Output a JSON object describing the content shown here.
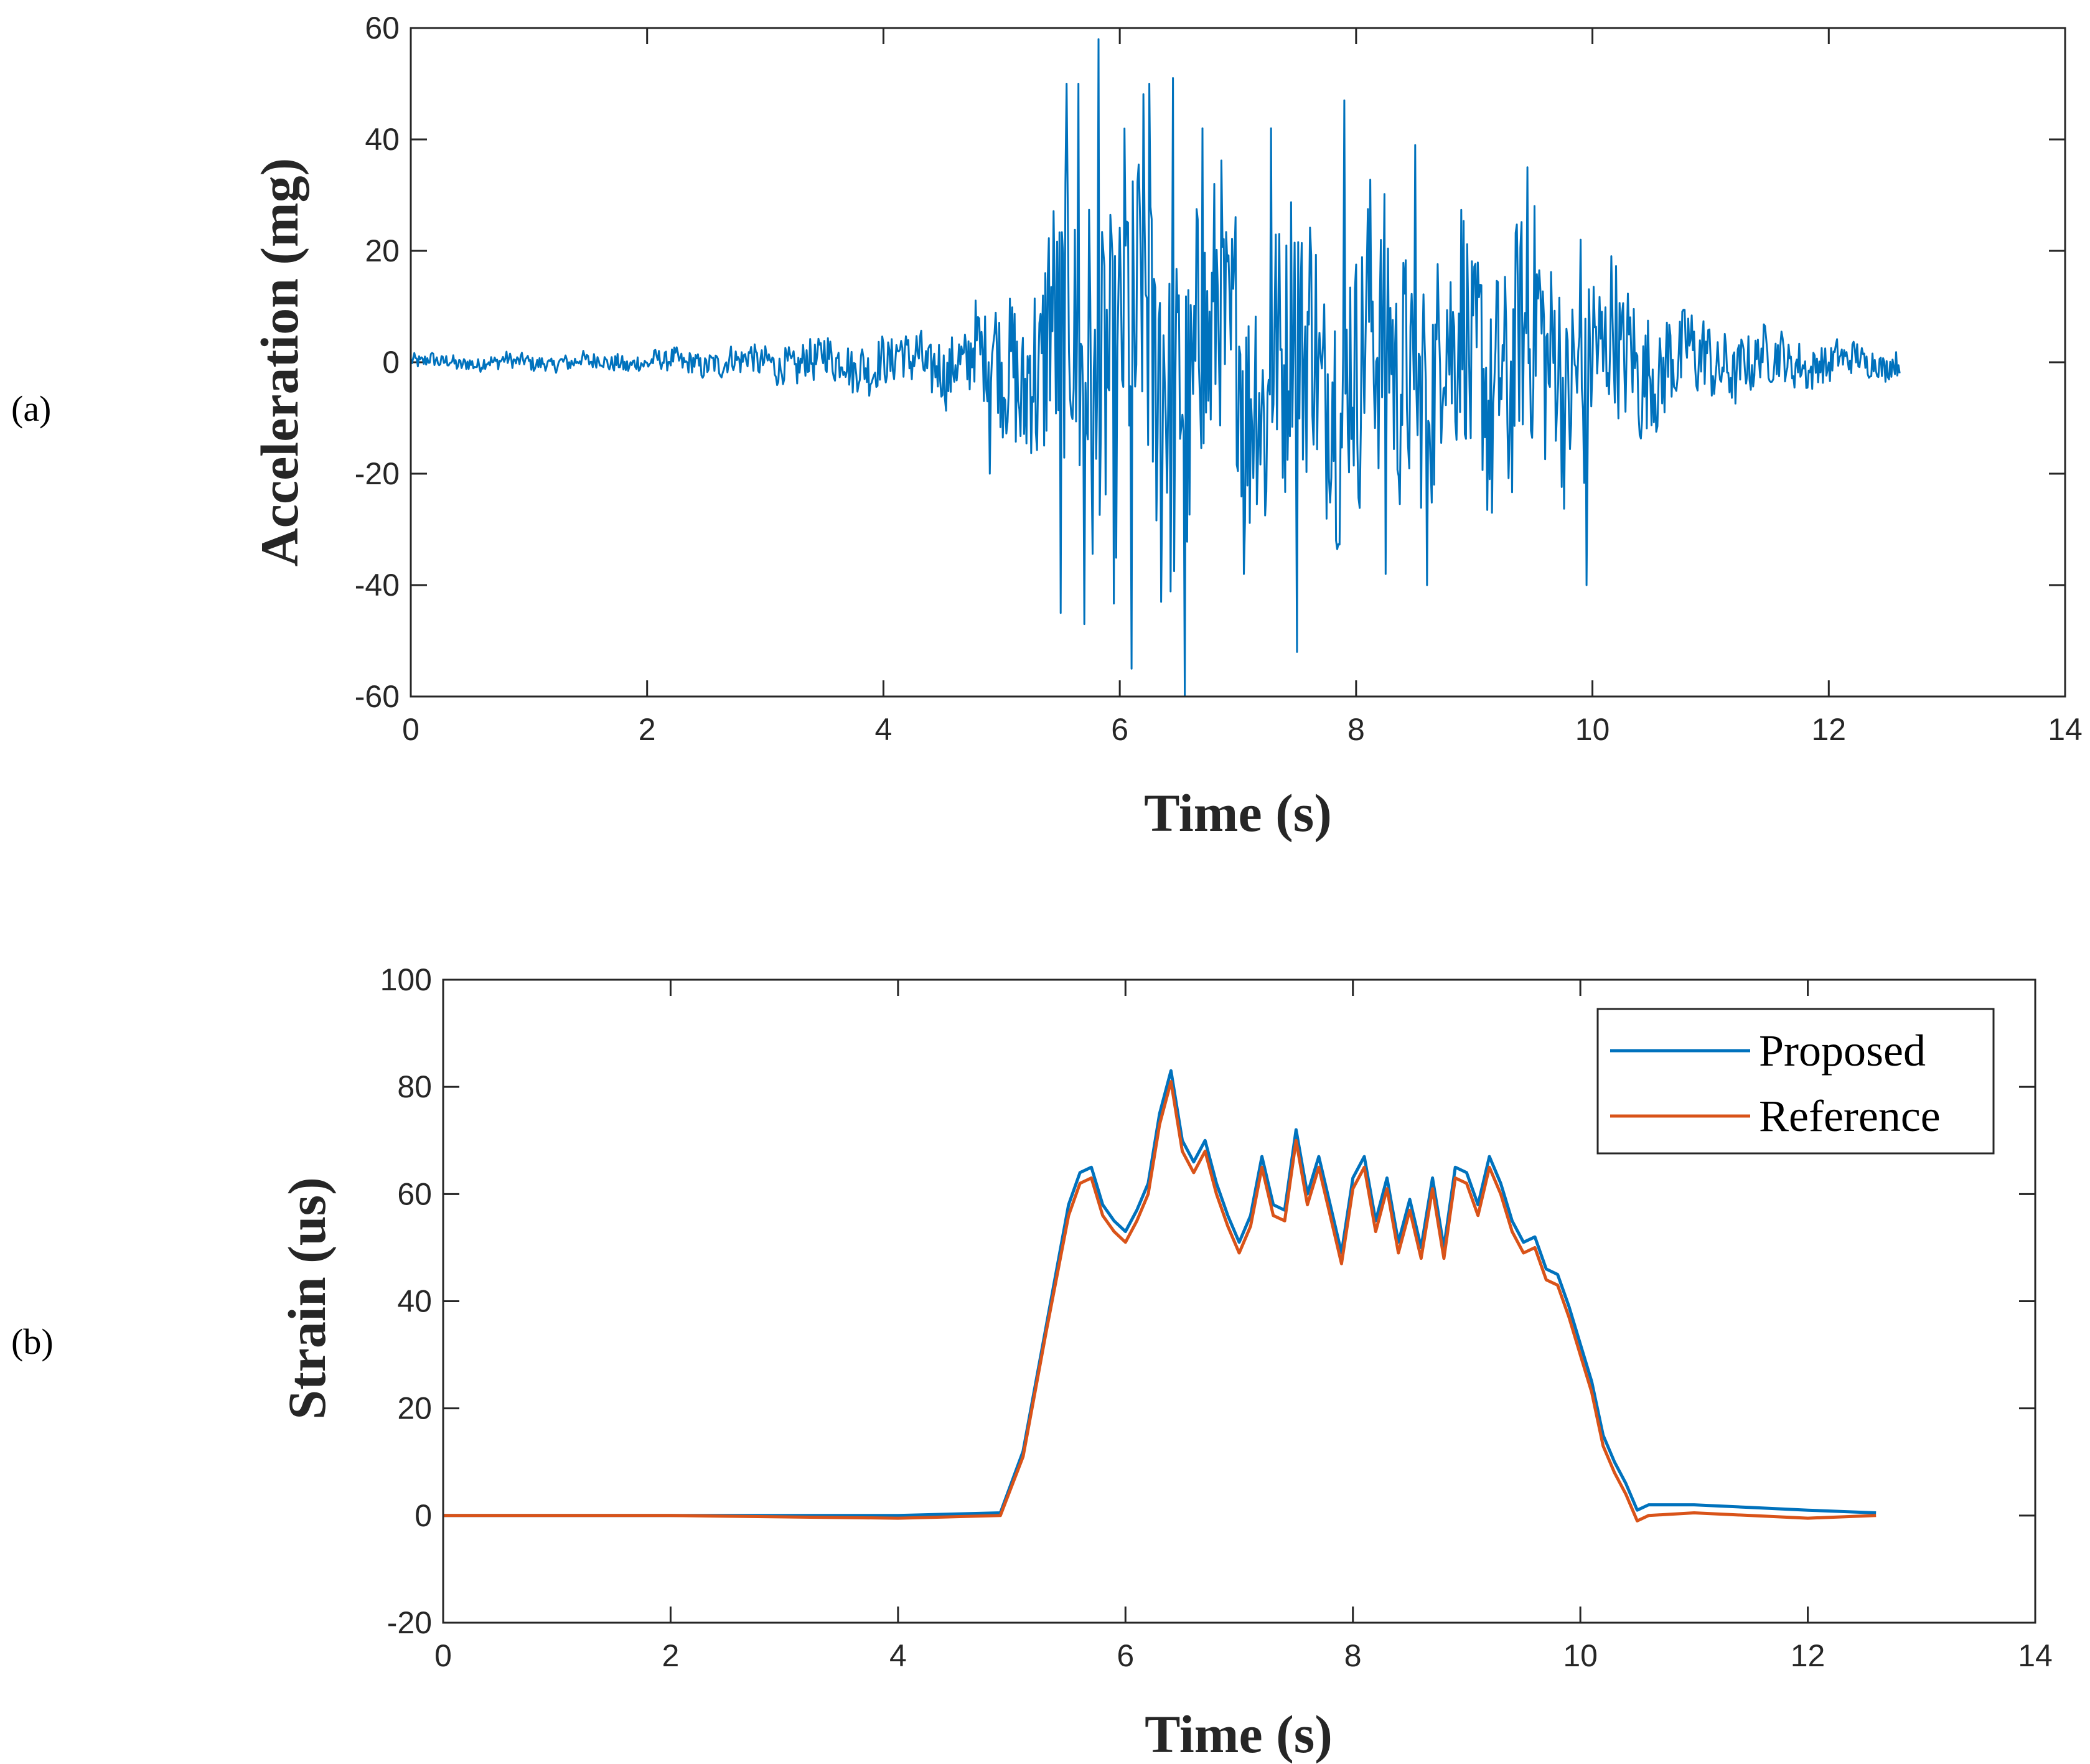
{
  "chart_data": [
    {
      "type": "line",
      "panel_label": "(a)",
      "xlabel": "Time (s)",
      "ylabel": "Acceleration (mg)",
      "xlim": [
        0,
        14
      ],
      "ylim": [
        -60,
        60
      ],
      "xticks": [
        0,
        2,
        4,
        6,
        8,
        10,
        12,
        14
      ],
      "yticks": [
        -60,
        -40,
        -20,
        0,
        20,
        40,
        60
      ],
      "grid": false,
      "series": [
        {
          "name": "Acceleration",
          "color": "#0072BD",
          "sample_rate_hz": 100,
          "duration_s": 12.6,
          "envelope_t": [
            0,
            1,
            2,
            3,
            3.5,
            4,
            4.5,
            4.9,
            5.2,
            5.5,
            5.8,
            6.1,
            6.4,
            6.8,
            7.2,
            7.6,
            8.0,
            8.4,
            8.8,
            9.2,
            9.6,
            10.0,
            10.4,
            10.8,
            11.2,
            11.6,
            12.0,
            12.6
          ],
          "envelope_amp": [
            1.2,
            1.2,
            1.5,
            2.5,
            3.5,
            4,
            5,
            8,
            14,
            24,
            30,
            30,
            28,
            24,
            22,
            22,
            22,
            20,
            20,
            20,
            18,
            15,
            10,
            7,
            5,
            4,
            3,
            2
          ],
          "peaks": [
            {
              "t": 5.82,
              "v": 58
            },
            {
              "t": 5.55,
              "v": 50
            },
            {
              "t": 5.65,
              "v": 50
            },
            {
              "t": 6.25,
              "v": 50
            },
            {
              "t": 6.45,
              "v": 51
            },
            {
              "t": 6.7,
              "v": 42
            },
            {
              "t": 7.28,
              "v": 42
            },
            {
              "t": 7.9,
              "v": 47
            },
            {
              "t": 8.5,
              "v": 39
            },
            {
              "t": 9.45,
              "v": 35
            },
            {
              "t": 9.9,
              "v": 22
            },
            {
              "t": 6.55,
              "v": -62
            },
            {
              "t": 6.1,
              "v": -55
            },
            {
              "t": 7.5,
              "v": -52
            },
            {
              "t": 5.7,
              "v": -47
            },
            {
              "t": 5.5,
              "v": -45
            },
            {
              "t": 6.35,
              "v": -43
            },
            {
              "t": 7.05,
              "v": -38
            },
            {
              "t": 8.25,
              "v": -38
            },
            {
              "t": 8.6,
              "v": -40
            },
            {
              "t": 9.95,
              "v": -40
            },
            {
              "t": 4.9,
              "v": -20
            }
          ]
        }
      ]
    },
    {
      "type": "line",
      "panel_label": "(b)",
      "xlabel": "Time (s)",
      "ylabel": "Strain (us)",
      "xlim": [
        0,
        14
      ],
      "ylim": [
        -20,
        100
      ],
      "xticks": [
        0,
        2,
        4,
        6,
        8,
        10,
        12,
        14
      ],
      "yticks": [
        -20,
        0,
        20,
        40,
        60,
        80,
        100
      ],
      "grid": false,
      "legend_position": "top-right",
      "x": [
        0,
        2,
        4,
        4.9,
        5.1,
        5.3,
        5.5,
        5.6,
        5.7,
        5.8,
        5.9,
        6.0,
        6.1,
        6.2,
        6.3,
        6.4,
        6.5,
        6.6,
        6.7,
        6.8,
        6.9,
        7.0,
        7.1,
        7.2,
        7.3,
        7.4,
        7.5,
        7.6,
        7.7,
        7.8,
        7.9,
        8.0,
        8.1,
        8.2,
        8.3,
        8.4,
        8.5,
        8.6,
        8.7,
        8.8,
        8.9,
        9.0,
        9.1,
        9.2,
        9.3,
        9.4,
        9.5,
        9.6,
        9.7,
        9.8,
        9.9,
        10.0,
        10.1,
        10.2,
        10.3,
        10.4,
        10.5,
        10.6,
        11.0,
        11.5,
        12.0,
        12.6
      ],
      "series": [
        {
          "name": "Proposed",
          "color": "#0072BD",
          "values": [
            0,
            0,
            0,
            0.5,
            12,
            35,
            58,
            64,
            65,
            58,
            55,
            53,
            57,
            62,
            75,
            83,
            70,
            66,
            70,
            62,
            56,
            51,
            56,
            67,
            58,
            57,
            72,
            60,
            67,
            58,
            49,
            63,
            67,
            55,
            63,
            51,
            59,
            50,
            63,
            50,
            65,
            64,
            58,
            67,
            62,
            55,
            51,
            52,
            46,
            45,
            39,
            32,
            25,
            15,
            10,
            6,
            1,
            2,
            2,
            1.5,
            1,
            0.5
          ]
        },
        {
          "name": "Reference",
          "color": "#D95319",
          "values": [
            0,
            0,
            -0.5,
            0,
            11,
            34,
            56,
            62,
            63,
            56,
            53,
            51,
            55,
            60,
            73,
            81,
            68,
            64,
            68,
            60,
            54,
            49,
            54,
            65,
            56,
            55,
            70,
            58,
            65,
            56,
            47,
            61,
            65,
            53,
            61,
            49,
            57,
            48,
            61,
            48,
            63,
            62,
            56,
            65,
            60,
            53,
            49,
            50,
            44,
            43,
            37,
            30,
            23,
            13,
            8,
            4,
            -1,
            0,
            0.5,
            0,
            -0.5,
            0
          ]
        }
      ]
    }
  ]
}
